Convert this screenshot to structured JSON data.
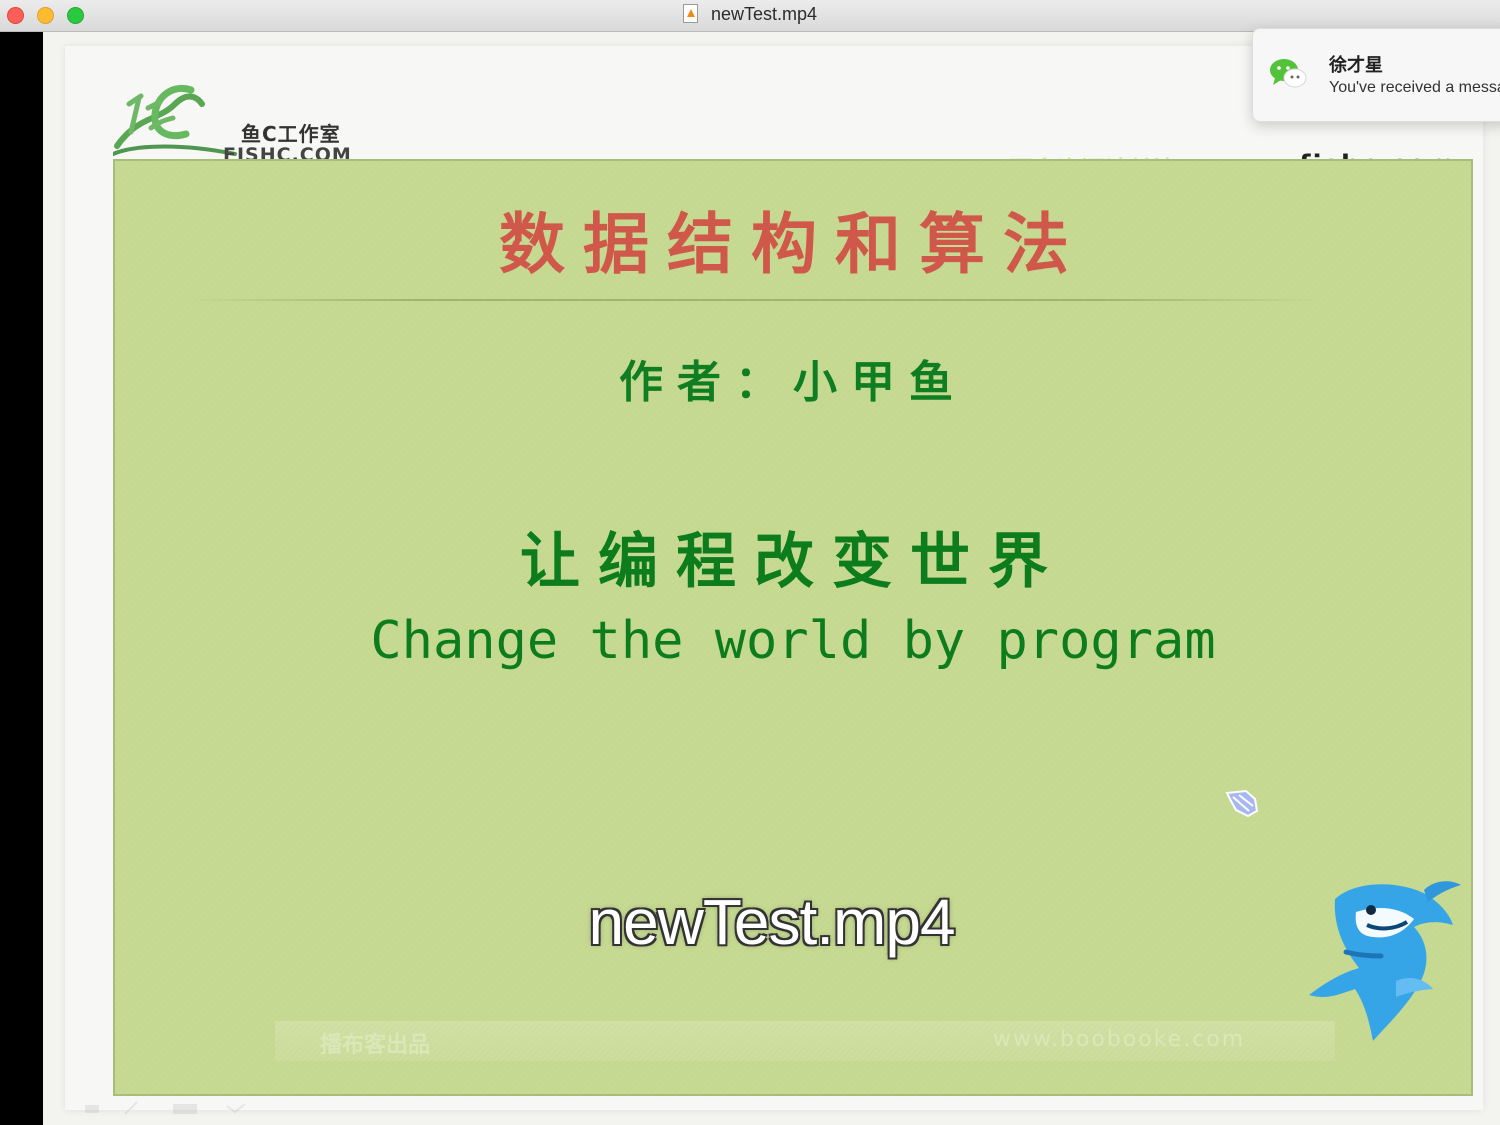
{
  "window": {
    "title": "newTest.mp4",
    "file_icon": "video-file-icon"
  },
  "video": {
    "logo_text_line1": "鱼C工作室",
    "logo_text_line2": "FISHC.COM",
    "watermark_cn": "更多资源请关注：",
    "watermark_url": "www.fishc.com",
    "slide": {
      "title": "数据结构和算法",
      "author": "作者：小甲鱼",
      "slogan_cn": "让编程改变世界",
      "slogan_en": "Change the world by program"
    },
    "footer_left": "播布客出品",
    "footer_right": "www.boobooke.com",
    "caption": "newTest.mp4"
  },
  "notification": {
    "app_icon": "wechat-icon",
    "title": "徐才星",
    "body": "You've received a message"
  }
}
